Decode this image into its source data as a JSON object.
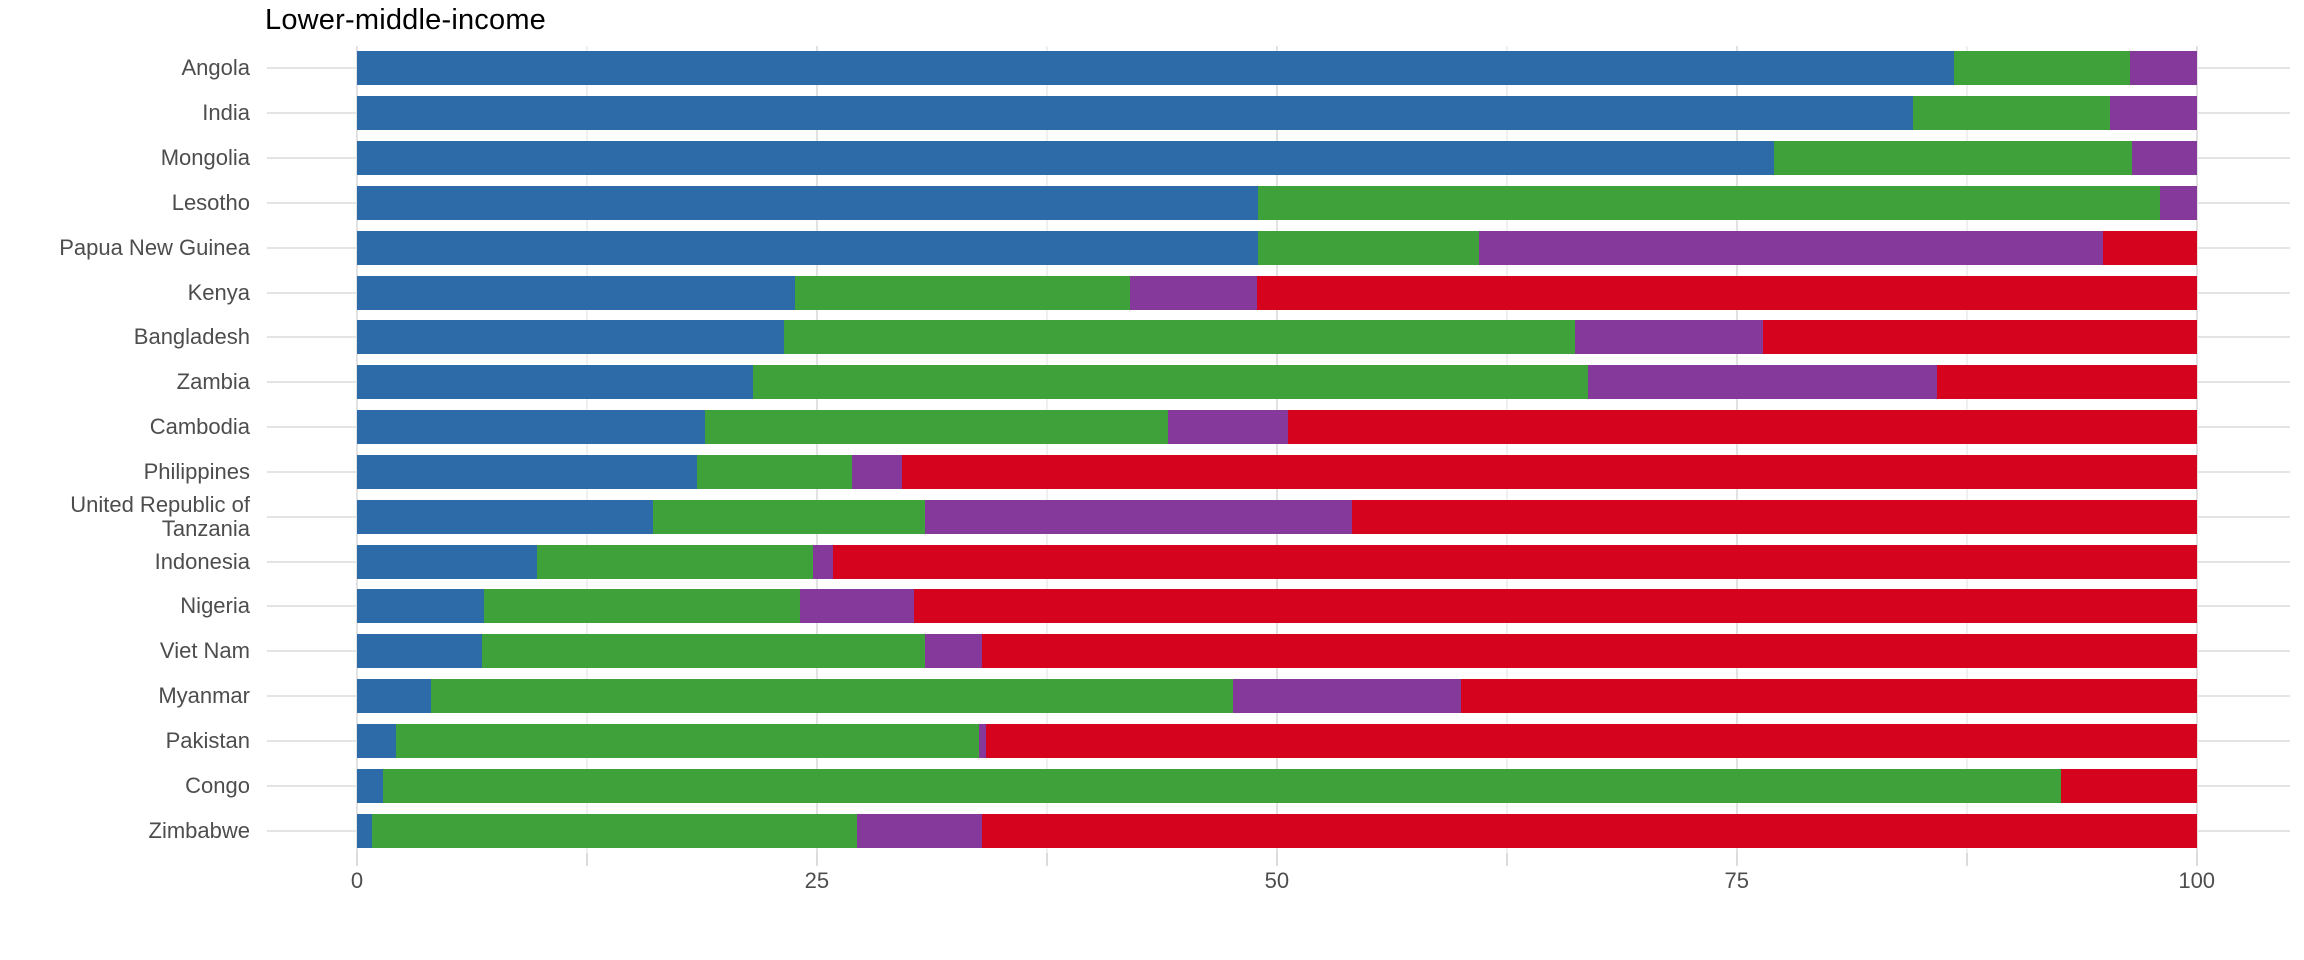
{
  "chart_data": {
    "type": "bar",
    "orientation": "horizontal",
    "stacked": true,
    "title": "Lower-middle-income",
    "xlabel": "",
    "ylabel": "",
    "xlim": [
      0,
      100
    ],
    "x_ticks": [
      0,
      25,
      50,
      75,
      100
    ],
    "x_minor_tick_step": 12.5,
    "grid": "on",
    "legend": "none",
    "categories": [
      "Angola",
      "India",
      "Mongolia",
      "Lesotho",
      "Papua New Guinea",
      "Kenya",
      "Bangladesh",
      "Zambia",
      "Cambodia",
      "Philippines",
      "United Republic of Tanzania",
      "Indonesia",
      "Nigeria",
      "Viet Nam",
      "Myanmar",
      "Pakistan",
      "Congo",
      "Zimbabwe"
    ],
    "series": [
      {
        "name": "segment-blue",
        "color": "#2c6aa8",
        "values": [
          86.8,
          84.6,
          77.0,
          49.0,
          49.0,
          23.8,
          23.2,
          21.5,
          18.9,
          18.5,
          16.1,
          9.8,
          6.9,
          6.8,
          4.0,
          2.1,
          1.4,
          0.8
        ]
      },
      {
        "name": "segment-green",
        "color": "#3fa13a",
        "values": [
          9.6,
          10.7,
          19.5,
          49.0,
          12.0,
          18.2,
          43.0,
          45.4,
          25.2,
          8.4,
          14.8,
          15.0,
          17.2,
          24.1,
          43.6,
          31.7,
          91.2,
          26.4
        ]
      },
      {
        "name": "segment-purple",
        "color": "#84399b",
        "values": [
          3.6,
          4.7,
          3.5,
          2.0,
          33.9,
          6.9,
          10.2,
          19.0,
          6.5,
          2.7,
          23.2,
          1.1,
          6.2,
          3.1,
          12.4,
          0.4,
          0.0,
          6.8
        ]
      },
      {
        "name": "segment-red",
        "color": "#d6031f",
        "values": [
          0.0,
          0.0,
          0.0,
          0.0,
          5.1,
          51.1,
          23.6,
          14.1,
          49.4,
          70.4,
          45.9,
          74.1,
          69.7,
          66.0,
          40.0,
          65.8,
          7.4,
          66.0
        ]
      }
    ]
  },
  "axis": {
    "tick_label_color": "#4d4d4d",
    "gridline_major_color": "#e2e2e2",
    "gridline_minor_color": "#f0f0f0"
  }
}
